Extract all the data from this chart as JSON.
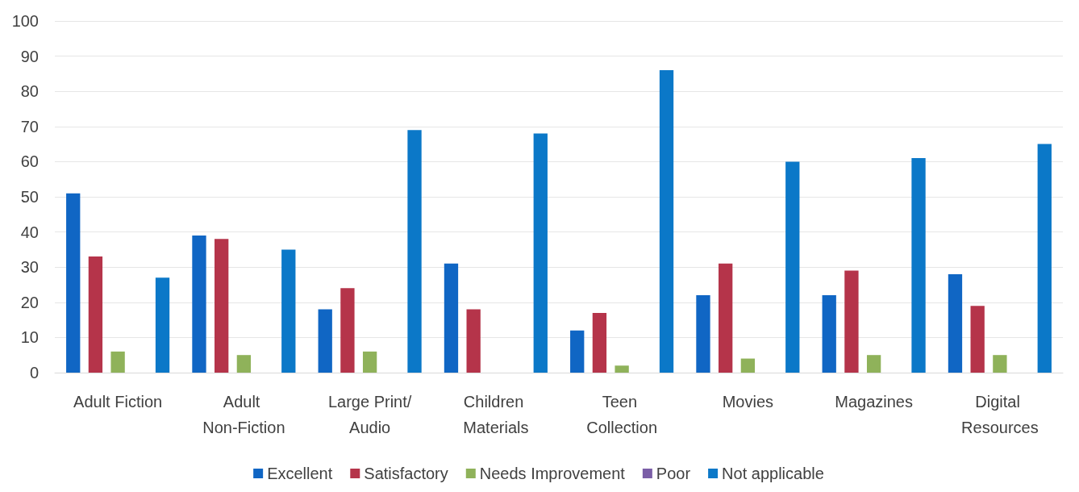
{
  "chart_data": {
    "type": "bar",
    "categories": [
      "Adult Fiction",
      "Adult Non-Fiction",
      "Large Print/Audio",
      "Children Materials",
      "Teen Collection",
      "Movies",
      "Magazines",
      "Digital Resources"
    ],
    "series": [
      {
        "name": "Excellent",
        "color": "#1066c4",
        "values": [
          51,
          39,
          18,
          31,
          12,
          22,
          22,
          28
        ]
      },
      {
        "name": "Satisfactory",
        "color": "#b5344a",
        "values": [
          33,
          38,
          24,
          18,
          17,
          31,
          29,
          19
        ]
      },
      {
        "name": "Needs Improvement",
        "color": "#8fb25a",
        "values": [
          6,
          5,
          6,
          0,
          2,
          4,
          5,
          5
        ]
      },
      {
        "name": "Poor",
        "color": "#7b5ea7",
        "values": [
          0,
          0,
          0,
          0,
          0,
          0,
          0,
          0
        ]
      },
      {
        "name": "Not applicable",
        "color": "#0b78c8",
        "values": [
          27,
          35,
          69,
          68,
          86,
          60,
          61,
          65
        ]
      }
    ],
    "ylim": [
      0,
      100
    ],
    "yticks": [
      0,
      10,
      20,
      30,
      40,
      50,
      60,
      70,
      80,
      90,
      100
    ],
    "grid": "y",
    "legend": "bottom"
  }
}
